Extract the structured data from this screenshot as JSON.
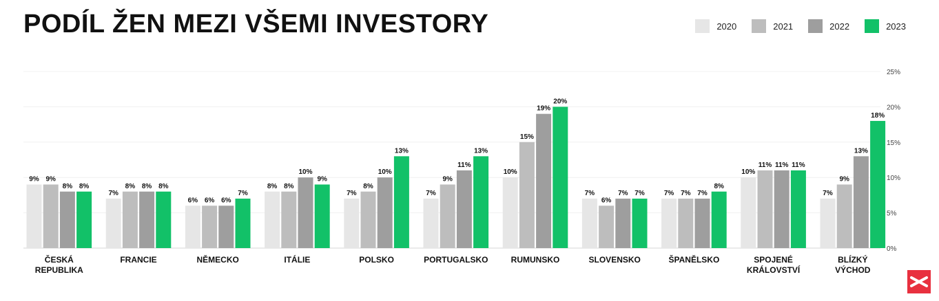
{
  "title": "PODÍL ŽEN MEZI VŠEMI INVESTORY",
  "legend": [
    {
      "label": "2020",
      "color": "#e6e6e6"
    },
    {
      "label": "2021",
      "color": "#bdbdbd"
    },
    {
      "label": "2022",
      "color": "#9e9e9e"
    },
    {
      "label": "2023",
      "color": "#12c168"
    }
  ],
  "chart_data": {
    "type": "bar",
    "title": "PODÍL ŽEN MEZI VŠEMI INVESTORY",
    "categories": [
      [
        "ČESKÁ",
        "REPUBLIKA"
      ],
      [
        "FRANCIE"
      ],
      [
        "NĚMECKO"
      ],
      [
        "ITÁLIE"
      ],
      [
        "POLSKO"
      ],
      [
        "PORTUGALSKO"
      ],
      [
        "RUMUNSKO"
      ],
      [
        "SLOVENSKO"
      ],
      [
        "ŠPANĚLSKO"
      ],
      [
        "SPOJENÉ",
        "KRÁLOVSTVÍ"
      ],
      [
        "BLÍZKÝ",
        "VÝCHOD"
      ]
    ],
    "series": [
      {
        "name": "2020",
        "color": "#e6e6e6",
        "values": [
          9,
          7,
          6,
          8,
          7,
          7,
          10,
          7,
          7,
          10,
          7
        ]
      },
      {
        "name": "2021",
        "color": "#bdbdbd",
        "values": [
          9,
          8,
          6,
          8,
          8,
          9,
          15,
          6,
          7,
          11,
          9
        ]
      },
      {
        "name": "2022",
        "color": "#9e9e9e",
        "values": [
          8,
          8,
          6,
          10,
          10,
          11,
          19,
          7,
          7,
          11,
          13
        ]
      },
      {
        "name": "2023",
        "color": "#12c168",
        "values": [
          8,
          8,
          7,
          9,
          13,
          13,
          20,
          7,
          8,
          11,
          18
        ]
      }
    ],
    "ylim": [
      0,
      25
    ],
    "yticks": [
      0,
      5,
      10,
      15,
      20,
      25
    ],
    "value_suffix": "%",
    "grid": true,
    "legend_position": "top-right"
  }
}
